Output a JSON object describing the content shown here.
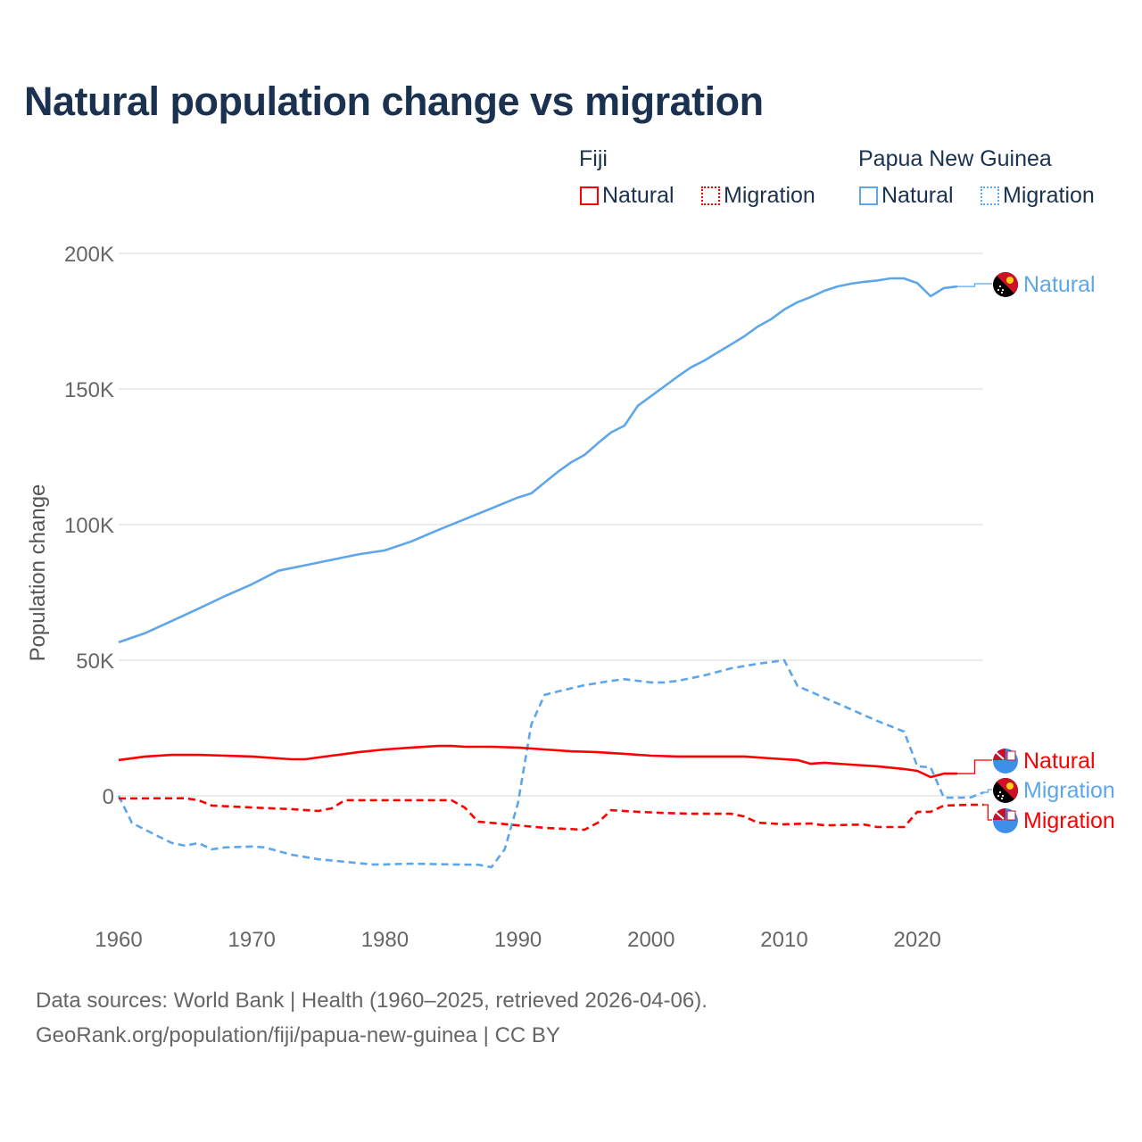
{
  "title": "Natural population change vs migration",
  "legend": {
    "groups": [
      {
        "name": "Fiji",
        "items": [
          {
            "label": "Natural",
            "style": "solid"
          },
          {
            "label": "Migration",
            "style": "dotted"
          }
        ],
        "color": "#ff0000"
      },
      {
        "name": "Papua New Guinea",
        "items": [
          {
            "label": "Natural",
            "style": "solid"
          },
          {
            "label": "Migration",
            "style": "dotted"
          }
        ],
        "color": "#5ea6ea"
      }
    ]
  },
  "footer": {
    "line1": "Data sources: World Bank | Health (1960–2025, retrieved 2026-04-06).",
    "line2": "GeoRank.org/population/fiji/papua-new-guinea | CC BY"
  },
  "chart_data": {
    "type": "line",
    "title": "Natural population change vs migration",
    "xlabel": "",
    "ylabel": "Population change",
    "xlim": [
      1960,
      2025
    ],
    "ylim": [
      -40000,
      200000
    ],
    "xticks": [
      1960,
      1970,
      1980,
      1990,
      2000,
      2010,
      2020
    ],
    "xtick_labels": [
      "1960",
      "1970",
      "1980",
      "1990",
      "2000",
      "2010",
      "2020"
    ],
    "yticks": [
      0,
      50000,
      100000,
      150000,
      200000
    ],
    "ytick_labels": [
      "0",
      "50K",
      "100K",
      "150K",
      "200K"
    ],
    "grid": true,
    "series": [
      {
        "name": "Papua New Guinea Natural",
        "country": "Papua New Guinea",
        "end_label": "Natural",
        "color": "#5ea6ea",
        "dash": "solid",
        "points": [
          [
            1960,
            56600
          ],
          [
            1962,
            60000
          ],
          [
            1964,
            64500
          ],
          [
            1966,
            69000
          ],
          [
            1968,
            73700
          ],
          [
            1970,
            78000
          ],
          [
            1972,
            83000
          ],
          [
            1974,
            85000
          ],
          [
            1976,
            87000
          ],
          [
            1978,
            89000
          ],
          [
            1980,
            90500
          ],
          [
            1982,
            93800
          ],
          [
            1984,
            98000
          ],
          [
            1986,
            102000
          ],
          [
            1988,
            106000
          ],
          [
            1990,
            110000
          ],
          [
            1991,
            111500
          ],
          [
            1992,
            115500
          ],
          [
            1993,
            119500
          ],
          [
            1994,
            123000
          ],
          [
            1995,
            125700
          ],
          [
            1996,
            130000
          ],
          [
            1997,
            134000
          ],
          [
            1998,
            136500
          ],
          [
            1999,
            143800
          ],
          [
            2000,
            147400
          ],
          [
            2001,
            151000
          ],
          [
            2002,
            154600
          ],
          [
            2003,
            158000
          ],
          [
            2004,
            160500
          ],
          [
            2005,
            163500
          ],
          [
            2006,
            166400
          ],
          [
            2007,
            169400
          ],
          [
            2008,
            173000
          ],
          [
            2009,
            175700
          ],
          [
            2010,
            179300
          ],
          [
            2011,
            182000
          ],
          [
            2012,
            183900
          ],
          [
            2013,
            186200
          ],
          [
            2014,
            187800
          ],
          [
            2015,
            188800
          ],
          [
            2016,
            189500
          ],
          [
            2017,
            190000
          ],
          [
            2018,
            190800
          ],
          [
            2019,
            190800
          ],
          [
            2020,
            189000
          ],
          [
            2021,
            184200
          ],
          [
            2022,
            187200
          ],
          [
            2023,
            187800
          ]
        ]
      },
      {
        "name": "Papua New Guinea Migration",
        "country": "Papua New Guinea",
        "end_label": "Migration",
        "color": "#5ea6ea",
        "dash": "dashed",
        "points": [
          [
            1960,
            0
          ],
          [
            1961,
            -10000
          ],
          [
            1962,
            -12500
          ],
          [
            1963,
            -15000
          ],
          [
            1964,
            -17400
          ],
          [
            1965,
            -18400
          ],
          [
            1966,
            -17400
          ],
          [
            1967,
            -19700
          ],
          [
            1968,
            -19000
          ],
          [
            1970,
            -18700
          ],
          [
            1971,
            -19000
          ],
          [
            1972,
            -20400
          ],
          [
            1973,
            -21700
          ],
          [
            1975,
            -23400
          ],
          [
            1977,
            -24300
          ],
          [
            1979,
            -25300
          ],
          [
            1980,
            -25300
          ],
          [
            1982,
            -25000
          ],
          [
            1985,
            -25300
          ],
          [
            1987,
            -25400
          ],
          [
            1988,
            -26300
          ],
          [
            1989,
            -19700
          ],
          [
            1990,
            -2600
          ],
          [
            1991,
            26300
          ],
          [
            1992,
            37200
          ],
          [
            1993,
            38500
          ],
          [
            1995,
            40800
          ],
          [
            1997,
            42400
          ],
          [
            1998,
            43000
          ],
          [
            2000,
            41800
          ],
          [
            2001,
            41800
          ],
          [
            2002,
            42400
          ],
          [
            2004,
            44400
          ],
          [
            2006,
            47000
          ],
          [
            2008,
            48700
          ],
          [
            2010,
            50000
          ],
          [
            2011,
            40500
          ],
          [
            2013,
            36200
          ],
          [
            2015,
            31900
          ],
          [
            2017,
            27600
          ],
          [
            2019,
            23700
          ],
          [
            2020,
            10900
          ],
          [
            2021,
            10500
          ],
          [
            2022,
            -700
          ],
          [
            2023,
            -700
          ],
          [
            2024,
            -600
          ],
          [
            2025,
            1300
          ]
        ]
      },
      {
        "name": "Fiji Natural",
        "country": "Fiji",
        "end_label": "Natural",
        "color": "#ff0000",
        "dash": "solid",
        "points": [
          [
            1960,
            13200
          ],
          [
            1962,
            14500
          ],
          [
            1964,
            15100
          ],
          [
            1966,
            15100
          ],
          [
            1968,
            14800
          ],
          [
            1970,
            14500
          ],
          [
            1972,
            13800
          ],
          [
            1973,
            13500
          ],
          [
            1974,
            13500
          ],
          [
            1976,
            14800
          ],
          [
            1978,
            16100
          ],
          [
            1980,
            17100
          ],
          [
            1982,
            17800
          ],
          [
            1984,
            18400
          ],
          [
            1985,
            18400
          ],
          [
            1986,
            18100
          ],
          [
            1988,
            18100
          ],
          [
            1990,
            17800
          ],
          [
            1992,
            17100
          ],
          [
            1994,
            16400
          ],
          [
            1996,
            16100
          ],
          [
            1998,
            15500
          ],
          [
            2000,
            14800
          ],
          [
            2002,
            14500
          ],
          [
            2005,
            14500
          ],
          [
            2007,
            14500
          ],
          [
            2009,
            13800
          ],
          [
            2011,
            13200
          ],
          [
            2012,
            11800
          ],
          [
            2013,
            12200
          ],
          [
            2015,
            11500
          ],
          [
            2017,
            10900
          ],
          [
            2019,
            9900
          ],
          [
            2020,
            9200
          ],
          [
            2021,
            6900
          ],
          [
            2022,
            8200
          ],
          [
            2023,
            8200
          ]
        ]
      },
      {
        "name": "Fiji Migration",
        "country": "Fiji",
        "end_label": "Migration",
        "color": "#ff0000",
        "dash": "dashed",
        "points": [
          [
            1960,
            -1000
          ],
          [
            1965,
            -900
          ],
          [
            1966,
            -1600
          ],
          [
            1967,
            -3600
          ],
          [
            1970,
            -4300
          ],
          [
            1973,
            -4900
          ],
          [
            1975,
            -5600
          ],
          [
            1976,
            -4600
          ],
          [
            1977,
            -1600
          ],
          [
            1980,
            -1600
          ],
          [
            1985,
            -1600
          ],
          [
            1986,
            -4300
          ],
          [
            1987,
            -9500
          ],
          [
            1990,
            -10900
          ],
          [
            1992,
            -11800
          ],
          [
            1995,
            -12500
          ],
          [
            1996,
            -9900
          ],
          [
            1997,
            -5300
          ],
          [
            1999,
            -5900
          ],
          [
            2001,
            -6300
          ],
          [
            2003,
            -6600
          ],
          [
            2006,
            -6600
          ],
          [
            2007,
            -7600
          ],
          [
            2008,
            -9900
          ],
          [
            2010,
            -10500
          ],
          [
            2012,
            -10200
          ],
          [
            2013,
            -10900
          ],
          [
            2016,
            -10600
          ],
          [
            2017,
            -11500
          ],
          [
            2019,
            -11500
          ],
          [
            2020,
            -5900
          ],
          [
            2021,
            -5900
          ],
          [
            2022,
            -3600
          ],
          [
            2024,
            -3300
          ],
          [
            2025,
            -3300
          ]
        ]
      }
    ]
  }
}
